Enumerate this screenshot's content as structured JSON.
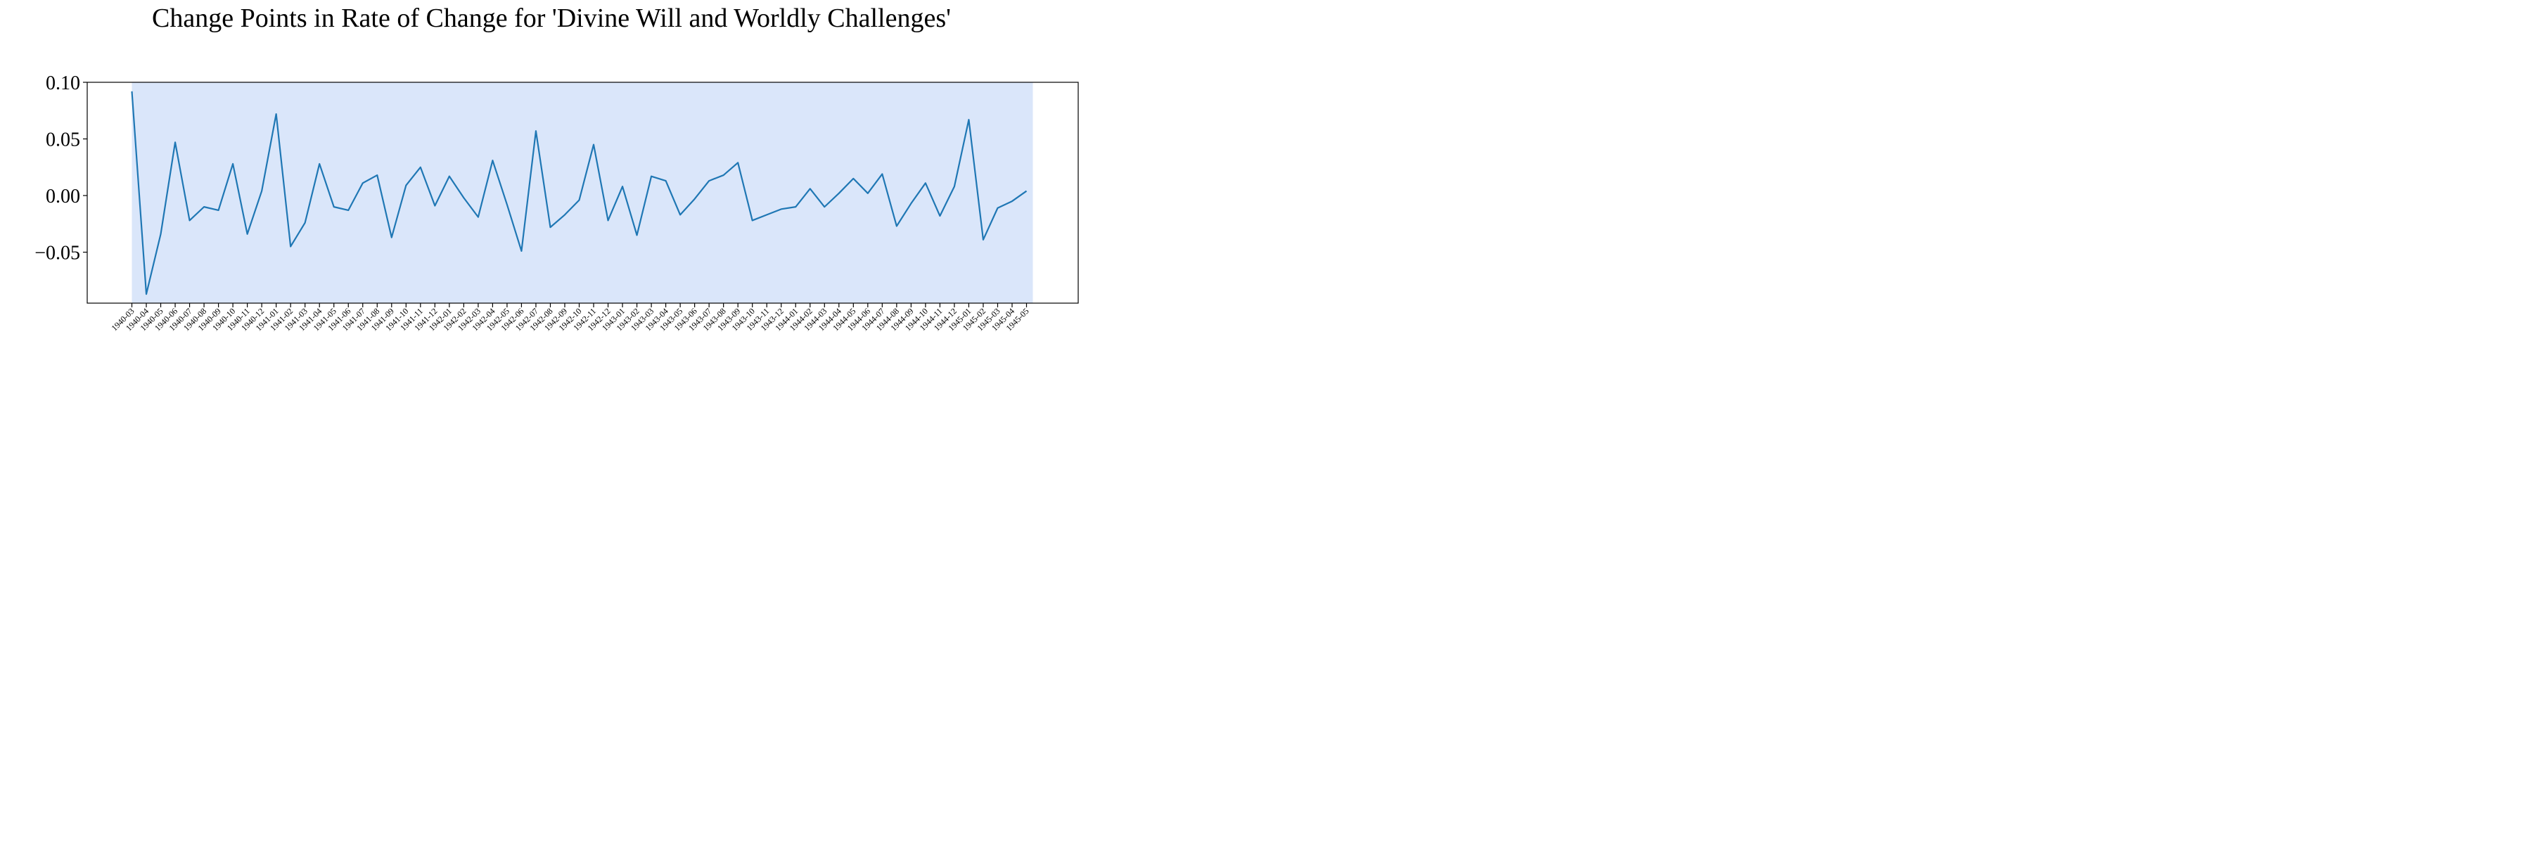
{
  "chart_data": {
    "type": "line",
    "title": "Change Points in Rate of Change for 'Divine Will and Worldly Challenges'",
    "xlabel": "",
    "ylabel": "",
    "ylim": [
      -0.095,
      0.1
    ],
    "yticks": [
      0.1,
      0.05,
      0.0,
      -0.05
    ],
    "ytick_labels": [
      "0.10",
      "0.05",
      "0.00",
      "−0.05"
    ],
    "grid": false,
    "categories": [
      "1940-03",
      "1940-04",
      "1940-05",
      "1940-06",
      "1940-07",
      "1940-08",
      "1940-09",
      "1940-10",
      "1940-11",
      "1940-12",
      "1941-01",
      "1941-02",
      "1941-03",
      "1941-04",
      "1941-05",
      "1941-06",
      "1941-07",
      "1941-08",
      "1941-09",
      "1941-10",
      "1941-11",
      "1941-12",
      "1942-01",
      "1942-02",
      "1942-03",
      "1942-04",
      "1942-05",
      "1942-06",
      "1942-07",
      "1942-08",
      "1942-09",
      "1942-10",
      "1942-11",
      "1942-12",
      "1943-01",
      "1943-02",
      "1943-03",
      "1943-04",
      "1943-05",
      "1943-06",
      "1943-07",
      "1943-08",
      "1943-09",
      "1943-10",
      "1943-11",
      "1943-12",
      "1944-01",
      "1944-02",
      "1944-03",
      "1944-04",
      "1944-05",
      "1944-06",
      "1944-07",
      "1944-08",
      "1944-09",
      "1944-10",
      "1944-11",
      "1944-12",
      "1945-01",
      "1945-02",
      "1945-03",
      "1945-04",
      "1945-05"
    ],
    "series": [
      {
        "values": [
          0.092,
          -0.087,
          -0.034,
          0.047,
          -0.022,
          -0.01,
          -0.013,
          0.028,
          -0.034,
          0.004,
          0.072,
          -0.045,
          -0.024,
          0.028,
          -0.01,
          -0.013,
          0.011,
          0.018,
          -0.037,
          0.009,
          0.025,
          -0.009,
          0.017,
          -0.002,
          -0.019,
          0.031,
          -0.008,
          -0.049,
          0.057,
          -0.028,
          -0.017,
          -0.004,
          0.045,
          -0.022,
          0.008,
          -0.035,
          0.017,
          0.013,
          -0.017,
          -0.003,
          0.013,
          0.018,
          0.029,
          -0.022,
          -0.017,
          -0.012,
          -0.01,
          0.006,
          -0.01,
          0.002,
          0.015,
          0.002,
          0.019,
          -0.027,
          -0.007,
          0.011,
          -0.018,
          0.008,
          0.067,
          -0.039,
          -0.011,
          -0.005,
          0.004
        ],
        "color": "#1f77b4"
      }
    ],
    "regions": [
      {
        "x_start": "1940-03",
        "x_end": "1945-05",
        "color": "#dae6fa"
      }
    ]
  }
}
